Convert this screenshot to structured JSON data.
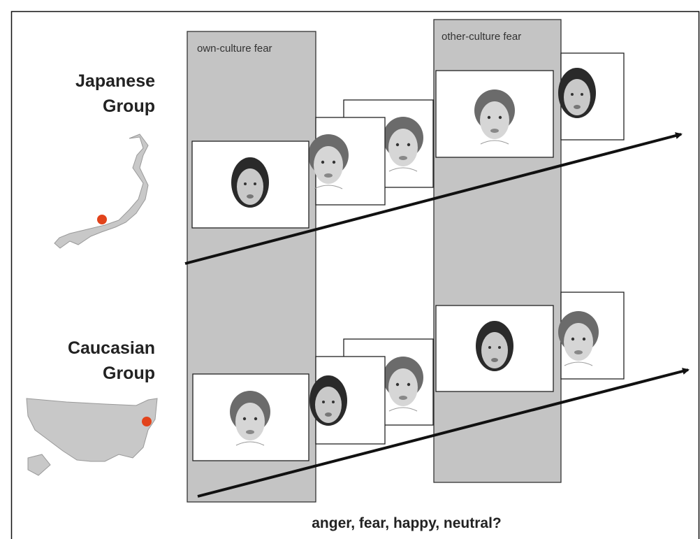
{
  "groups": [
    {
      "lines": [
        "Japanese",
        "Group"
      ]
    },
    {
      "lines": [
        "Caucasian",
        "Group"
      ]
    }
  ],
  "columns": [
    {
      "label": "own-culture fear"
    },
    {
      "label": "other-culture fear"
    }
  ],
  "question": "anger, fear, happy, neutral?"
}
